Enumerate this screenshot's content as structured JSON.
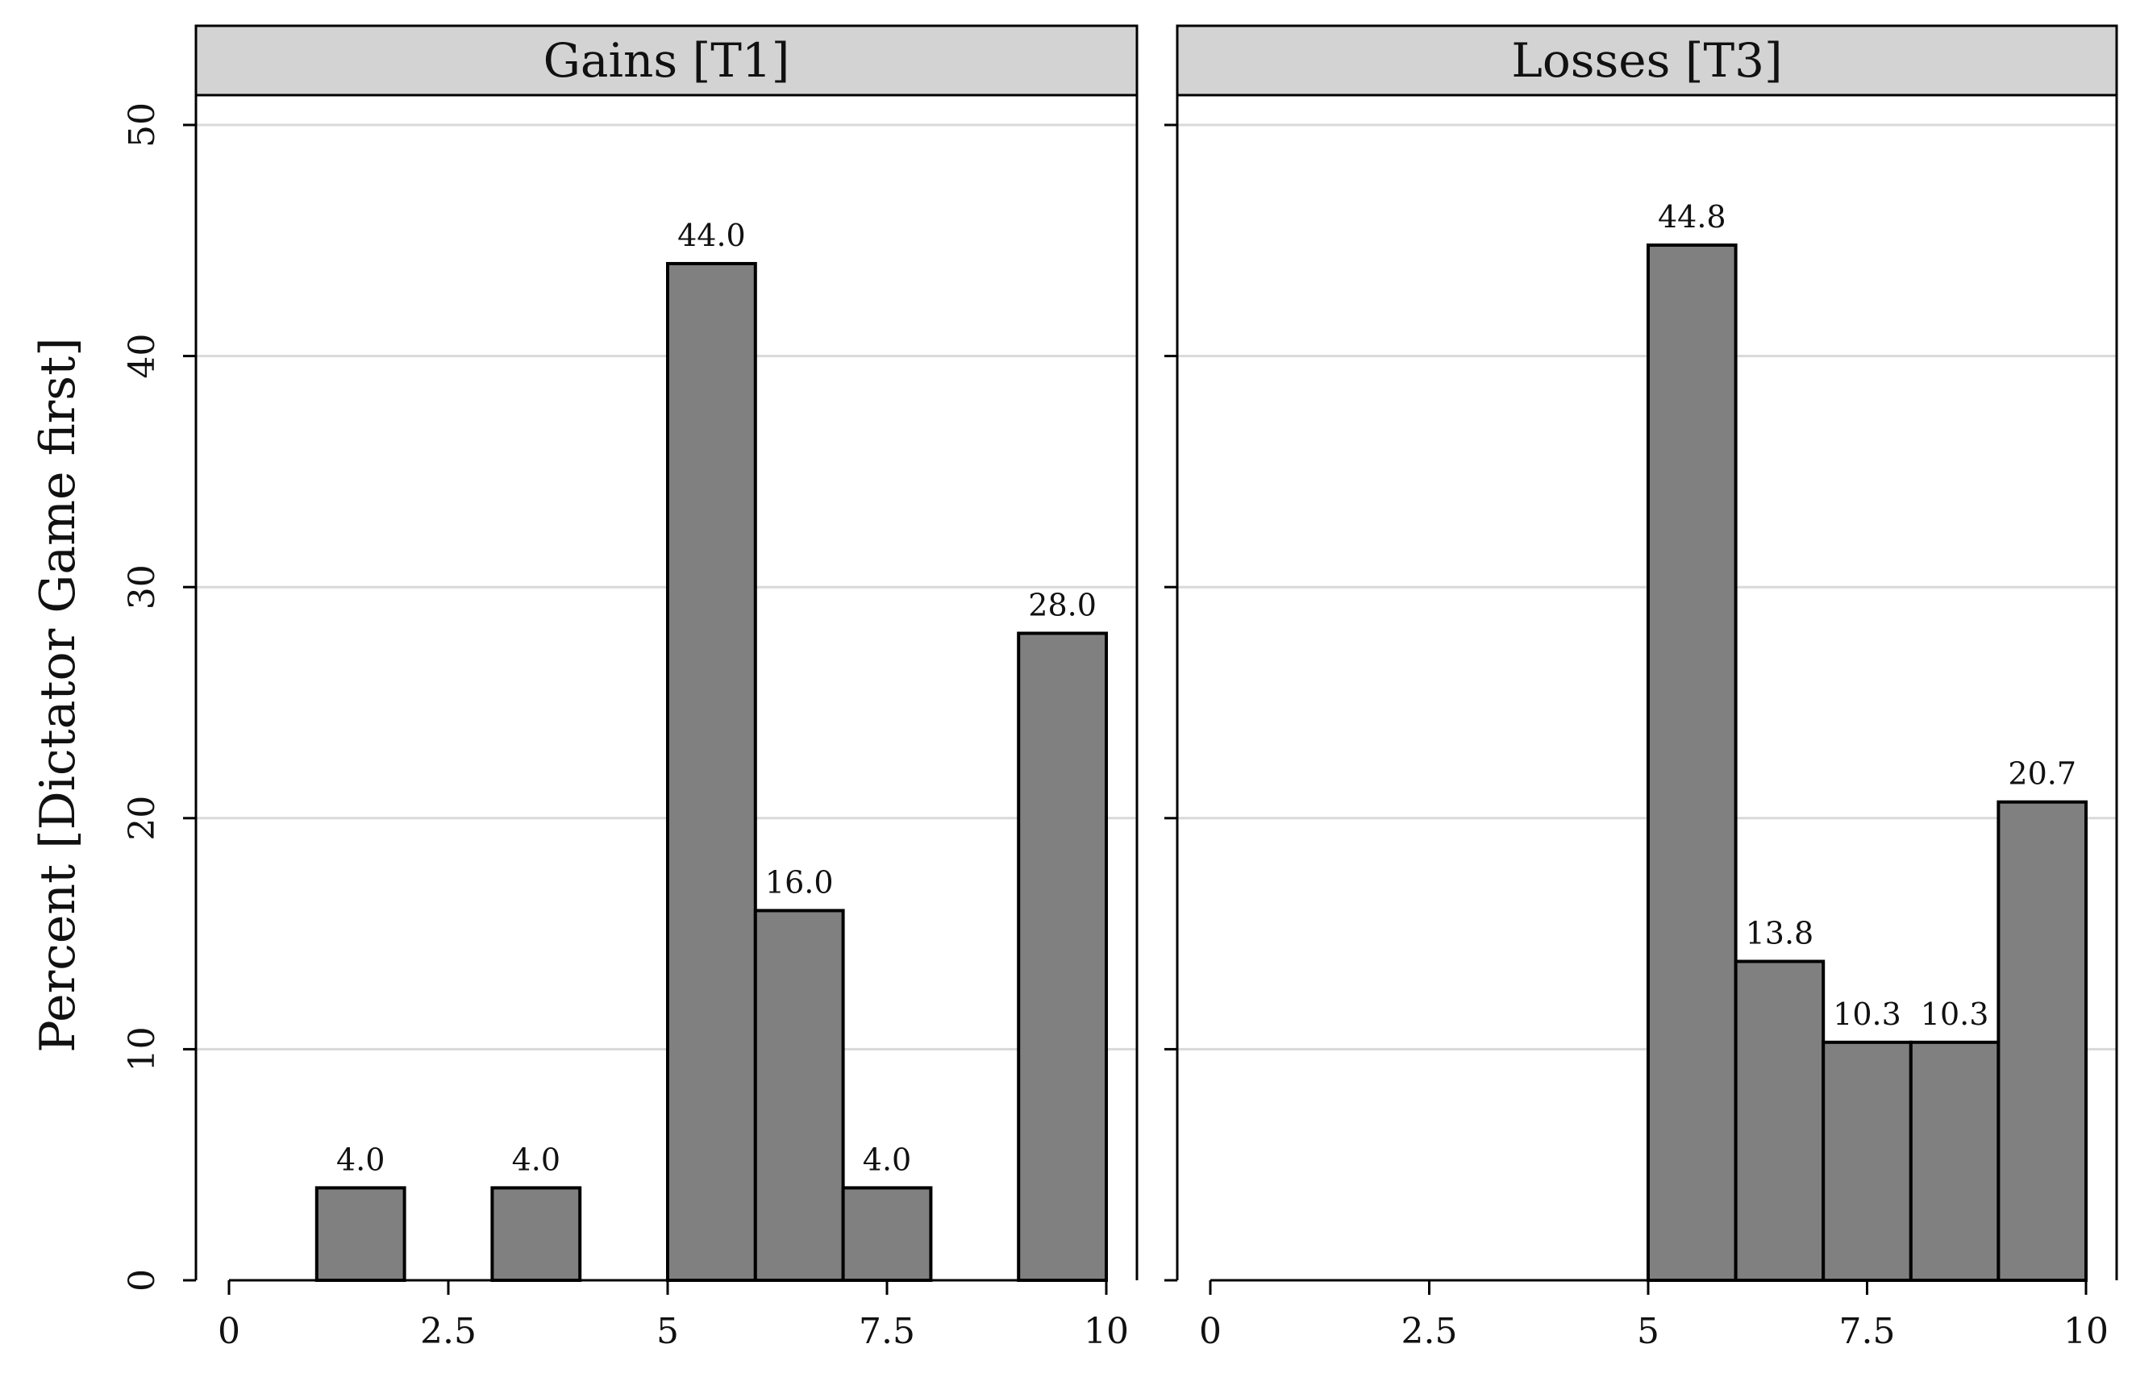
{
  "chart_data": {
    "type": "bar",
    "ylabel": "Percent [Dictator Game first]",
    "xlabel": "",
    "ylim": [
      0,
      50
    ],
    "yticks": [
      0,
      10,
      20,
      30,
      40,
      50
    ],
    "xlim": [
      0,
      10
    ],
    "xticks": [
      "0",
      "2.5",
      "5",
      "7.5",
      "10"
    ],
    "xtick_values": [
      0,
      2.5,
      5,
      7.5,
      10
    ],
    "grid": "horizontal",
    "colors": {
      "bar_fill": "#808080",
      "bar_edge": "#000000",
      "strip_fill": "#d3d3d3",
      "grid": "#d9d9d9"
    },
    "panels": [
      {
        "title": "Gains [T1]",
        "bins": [
          {
            "x0": 1,
            "x1": 2,
            "value": 4.0,
            "label": "4.0"
          },
          {
            "x0": 3,
            "x1": 4,
            "value": 4.0,
            "label": "4.0"
          },
          {
            "x0": 5,
            "x1": 6,
            "value": 44.0,
            "label": "44.0"
          },
          {
            "x0": 6,
            "x1": 7,
            "value": 16.0,
            "label": "16.0"
          },
          {
            "x0": 7,
            "x1": 8,
            "value": 4.0,
            "label": "4.0"
          },
          {
            "x0": 9,
            "x1": 10,
            "value": 28.0,
            "label": "28.0"
          }
        ]
      },
      {
        "title": "Losses [T3]",
        "bins": [
          {
            "x0": 5,
            "x1": 6,
            "value": 44.8,
            "label": "44.8"
          },
          {
            "x0": 6,
            "x1": 7,
            "value": 13.8,
            "label": "13.8"
          },
          {
            "x0": 7,
            "x1": 8,
            "value": 10.3,
            "label": "10.3"
          },
          {
            "x0": 8,
            "x1": 9,
            "value": 10.3,
            "label": "10.3"
          },
          {
            "x0": 9,
            "x1": 10,
            "value": 20.7,
            "label": "20.7"
          }
        ]
      }
    ]
  }
}
